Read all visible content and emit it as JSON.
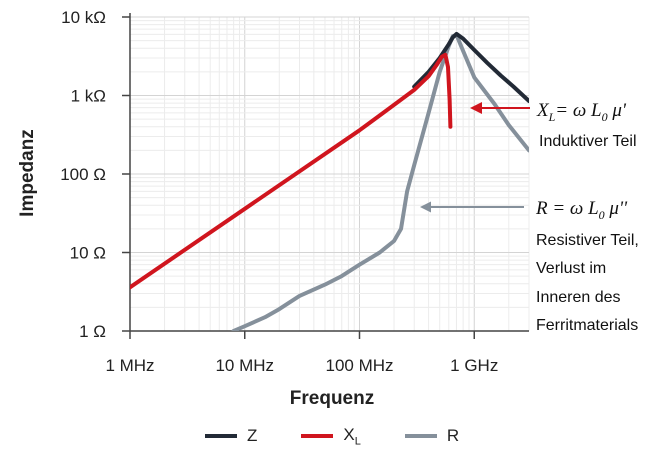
{
  "chart_data": {
    "type": "line",
    "title": "",
    "xlabel": "Frequenz",
    "ylabel": "Impedanz",
    "x_scale": "log",
    "y_scale": "log",
    "xlim": [
      1000000,
      3000000000
    ],
    "ylim": [
      1,
      10000
    ],
    "grid": true,
    "legend_position": "bottom",
    "x_ticks": [
      {
        "value": 1000000,
        "label": "1 MHz"
      },
      {
        "value": 10000000,
        "label": "10 MHz"
      },
      {
        "value": 100000000,
        "label": "100 MHz"
      },
      {
        "value": 1000000000,
        "label": "1 GHz"
      }
    ],
    "y_ticks": [
      {
        "value": 1,
        "label": "1 Ω"
      },
      {
        "value": 10,
        "label": "10 Ω"
      },
      {
        "value": 100,
        "label": "100 Ω"
      },
      {
        "value": 1000,
        "label": "1 kΩ"
      },
      {
        "value": 10000,
        "label": "10 kΩ"
      }
    ],
    "series": [
      {
        "name": "Z",
        "color": "#222a36",
        "x": [
          300000000,
          400000000,
          500000000,
          600000000,
          650000000,
          700000000,
          800000000,
          1000000000,
          1300000000,
          1700000000,
          2200000000,
          3000000000
        ],
        "y": [
          1300,
          2000,
          3000,
          4500,
          5500,
          6100,
          5300,
          3800,
          2600,
          1800,
          1300,
          850
        ]
      },
      {
        "name": "XL",
        "color": "#d0151e",
        "x": [
          1000000,
          10000000,
          100000000,
          200000000,
          300000000,
          400000000,
          470000000,
          520000000,
          560000000,
          590000000,
          610000000,
          620000000
        ],
        "y": [
          3.6,
          36,
          360,
          760,
          1180,
          1760,
          2450,
          3100,
          3300,
          2300,
          900,
          400
        ]
      },
      {
        "name": "R",
        "color": "#85909b",
        "x": [
          8000000,
          10000000,
          15000000,
          20000000,
          30000000,
          50000000,
          70000000,
          100000000,
          150000000,
          200000000,
          230000000,
          260000000,
          300000000,
          400000000,
          500000000,
          600000000,
          650000000,
          700000000,
          800000000,
          1000000000,
          1500000000,
          2000000000,
          3000000000
        ],
        "y": [
          1,
          1.15,
          1.5,
          1.9,
          2.8,
          3.9,
          5.0,
          7.0,
          10.0,
          14.0,
          20.0,
          60.0,
          130.0,
          600.0,
          2000.0,
          4300.0,
          5700.0,
          5900.0,
          3700.0,
          1700.0,
          780.0,
          420.0,
          200.0
        ]
      }
    ],
    "annotations": [
      {
        "formula": "XL= ω L0 μ'",
        "text_lines": [
          "Induktiver Teil"
        ],
        "points_to": "XL"
      },
      {
        "formula": "R = ω L0 μ''",
        "text_lines": [
          "Resistiver Teil,",
          "Verlust im",
          "Inneren des",
          "Ferritmaterials"
        ],
        "points_to": "R"
      }
    ]
  },
  "legend": [
    {
      "label": "Z",
      "color": "#222a36"
    },
    {
      "label": "X",
      "subscript": "L",
      "color": "#d0151e"
    },
    {
      "label": "R",
      "color": "#85909b"
    }
  ],
  "annotation_text": {
    "xl_formula_main": "X",
    "xl_formula_sub": "L",
    "xl_formula_rest": "= ω L",
    "xl_formula_sub2": "0",
    "xl_formula_end": " μ'",
    "xl_caption": "Induktiver Teil",
    "r_formula_main": "R = ω L",
    "r_formula_sub": "0",
    "r_formula_end": " μ''",
    "r_caption_1": "Resistiver Teil,",
    "r_caption_2": "Verlust im",
    "r_caption_3": "Inneren des",
    "r_caption_4": "Ferritmaterials"
  }
}
